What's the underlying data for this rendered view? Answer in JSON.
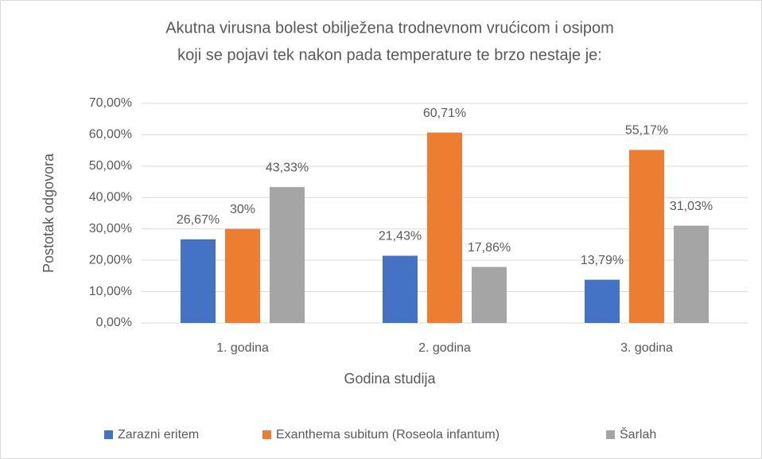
{
  "chart_data": {
    "type": "bar",
    "title": [
      "Akutna virusna bolest obilježena trodnevnom vrućicom i osipom",
      "koji se pojavi tek nakon pada temperature te brzo nestaje je:"
    ],
    "x_label": "Godina studija",
    "y_label": "Postotak odgovora",
    "categories": [
      "1. godina",
      "2. godina",
      "3. godina"
    ],
    "series": [
      {
        "name": "Zarazni eritem",
        "color": "#4472c4",
        "values": [
          26.67,
          21.43,
          13.79
        ],
        "value_labels": [
          "26,67%",
          "21,43%",
          "13,79%"
        ]
      },
      {
        "name": "Exanthema subitum (Roseola infantum)",
        "color": "#ed7d31",
        "values": [
          30,
          60.71,
          55.17
        ],
        "value_labels": [
          "30%",
          "60,71%",
          "55,17%"
        ]
      },
      {
        "name": "Šarlah",
        "color": "#a5a5a5",
        "values": [
          43.33,
          17.86,
          31.03
        ],
        "value_labels": [
          "43,33%",
          "17,86%",
          "31,03%"
        ]
      }
    ],
    "ylim": [
      0,
      70
    ],
    "yticks": [
      {
        "value": 0,
        "label": "0,00%"
      },
      {
        "value": 10,
        "label": "10,00%"
      },
      {
        "value": 20,
        "label": "20,00%"
      },
      {
        "value": 30,
        "label": "30,00%"
      },
      {
        "value": 40,
        "label": "40,00%"
      },
      {
        "value": 50,
        "label": "50,00%"
      },
      {
        "value": 60,
        "label": "60,00%"
      },
      {
        "value": 70,
        "label": "70,00%"
      }
    ],
    "grid": true,
    "legend": "bottom"
  }
}
